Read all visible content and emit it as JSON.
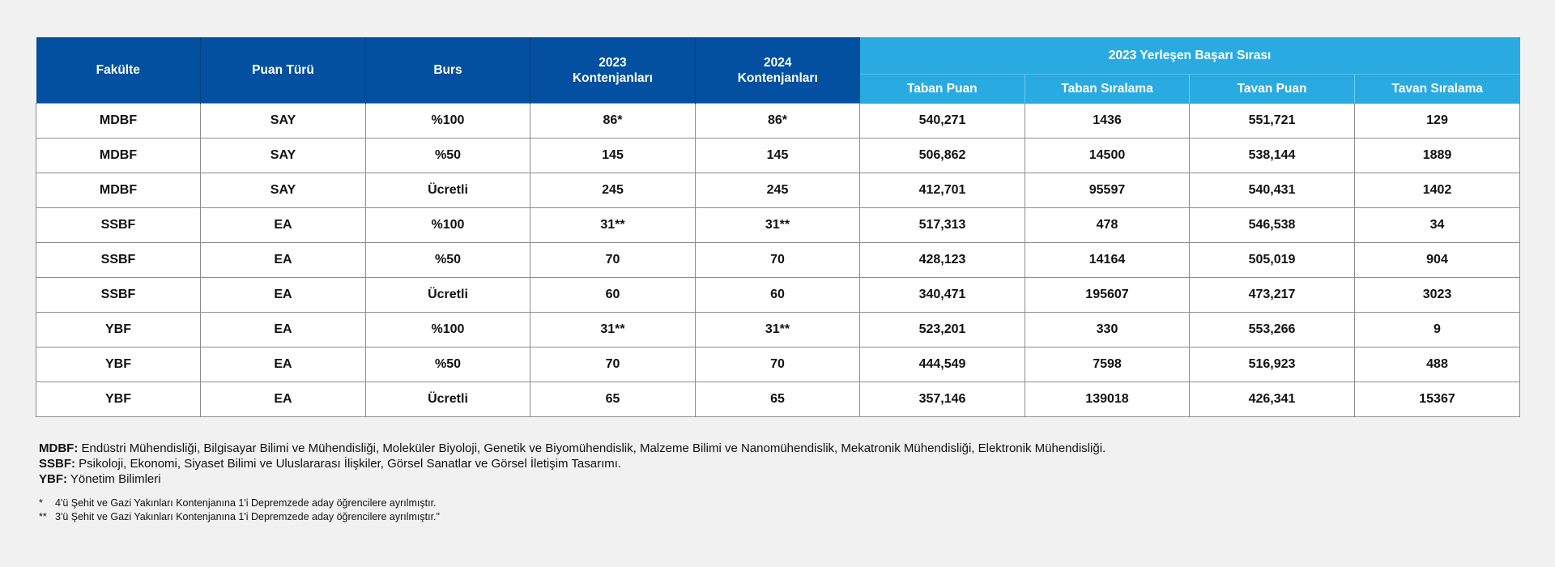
{
  "table": {
    "headers": {
      "fakulte": "Fakülte",
      "puan_turu": "Puan Türü",
      "burs": "Burs",
      "kontenjan_2023_line1": "2023",
      "kontenjan_2023_line2": "Kontenjanları",
      "kontenjan_2024_line1": "2024",
      "kontenjan_2024_line2": "Kontenjanları",
      "group_title": "2023 Yerleşen Başarı Sırası",
      "taban_puan": "Taban Puan",
      "taban_siralama": "Taban Sıralama",
      "tavan_puan": "Tavan Puan",
      "tavan_siralama": "Tavan Sıralama"
    },
    "rows": [
      [
        "MDBF",
        "SAY",
        "%100",
        "86*",
        "86*",
        "540,271",
        "1436",
        "551,721",
        "129"
      ],
      [
        "MDBF",
        "SAY",
        "%50",
        "145",
        "145",
        "506,862",
        "14500",
        "538,144",
        "1889"
      ],
      [
        "MDBF",
        "SAY",
        "Ücretli",
        "245",
        "245",
        "412,701",
        "95597",
        "540,431",
        "1402"
      ],
      [
        "SSBF",
        "EA",
        "%100",
        "31**",
        "31**",
        "517,313",
        "478",
        "546,538",
        "34"
      ],
      [
        "SSBF",
        "EA",
        "%50",
        "70",
        "70",
        "428,123",
        "14164",
        "505,019",
        "904"
      ],
      [
        "SSBF",
        "EA",
        "Ücretli",
        "60",
        "60",
        "340,471",
        "195607",
        "473,217",
        "3023"
      ],
      [
        "YBF",
        "EA",
        "%100",
        "31**",
        "31**",
        "523,201",
        "330",
        "553,266",
        "9"
      ],
      [
        "YBF",
        "EA",
        "%50",
        "70",
        "70",
        "444,549",
        "7598",
        "516,923",
        "488"
      ],
      [
        "YBF",
        "EA",
        "Ücretli",
        "65",
        "65",
        "357,146",
        "139018",
        "426,341",
        "15367"
      ]
    ]
  },
  "notes": {
    "mdbf_label": "MDBF:",
    "mdbf_text": " Endüstri Mühendisliği, Bilgisayar Bilimi ve Mühendisliği, Moleküler Biyoloji, Genetik ve Biyomühendislik, Malzeme Bilimi ve Nanomühendislik, Mekatronik Mühendisliği, Elektronik Mühendisliği.",
    "ssbf_label": "SSBF:",
    "ssbf_text": " Psikoloji, Ekonomi, Siyaset Bilimi ve Uluslararası İlişkiler, Görsel Sanatlar ve Görsel İletişim Tasarımı.",
    "ybf_label": "YBF:",
    "ybf_text": " Yönetim Bilimleri",
    "footnote1_mark": "*",
    "footnote1_text": "4'ü Şehit ve Gazi Yakınları Kontenjanına 1'i Depremzede aday öğrencilere ayrılmıştır.",
    "footnote2_mark": "**",
    "footnote2_text": "3'ü Şehit ve Gazi Yakınları Kontenjanına 1'i Depremzede aday öğrencilere ayrılmıştır.\""
  },
  "colors": {
    "header_dark": "#02509f",
    "header_light": "#29abe2",
    "page_background": "#f0f1f0"
  }
}
